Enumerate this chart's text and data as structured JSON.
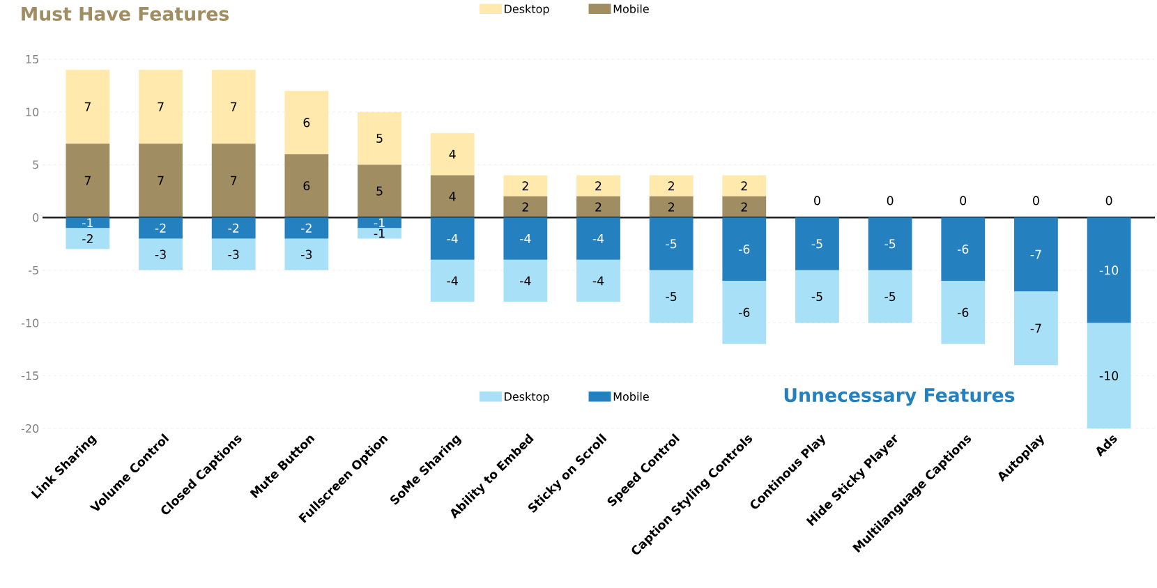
{
  "chart_data": {
    "type": "bar",
    "title": "Must Have Features",
    "stacked": true,
    "data_labels": true,
    "grid": "y",
    "legend": "top",
    "annotations": [
      "Unnecessary Features"
    ],
    "categories": [
      "Link Sharing",
      "Volume Control",
      "Closed Captions",
      "Mute Button",
      "Fullscreen Option",
      "SoMe Sharing",
      "Ability to Embed",
      "Sticky on Scroll",
      "Speed Control",
      "Caption Styling Controls",
      "Continous Play",
      "Hide Sticky Player",
      "Multilanguage Captions",
      "Autoplay",
      "Ads"
    ],
    "series": [
      {
        "name": "Mobile",
        "color": "#a08d62",
        "values": [
          7,
          7,
          7,
          6,
          5,
          4,
          2,
          2,
          2,
          2,
          0,
          0,
          0,
          0,
          0
        ],
        "value_labels": [
          "7",
          "7",
          "7",
          "6",
          "5",
          "4",
          "2",
          "2",
          "2",
          "2",
          null,
          null,
          null,
          null,
          null
        ]
      },
      {
        "name": "Desktop",
        "color": "#ffe9ad",
        "values": [
          7,
          7,
          7,
          6,
          5,
          4,
          2,
          2,
          2,
          2,
          0,
          0,
          0,
          0,
          0
        ]
      },
      {
        "name": "Mobile",
        "color": "#2580bf",
        "values": [
          -1,
          -2,
          -2,
          -2,
          -1,
          -4,
          -4,
          -4,
          -5,
          -6,
          -5,
          -5,
          -6,
          -7,
          -10
        ]
      },
      {
        "name": "Desktop",
        "color": "#a8e0f8",
        "values": [
          -2,
          -3,
          -3,
          -3,
          -1,
          -4,
          -4,
          -4,
          -5,
          -6,
          -5,
          -5,
          -6,
          -7,
          -10
        ]
      }
    ],
    "ylim": [
      -20,
      15
    ],
    "yticks": [
      -20,
      -15,
      -10,
      -5,
      0,
      5,
      10,
      15
    ],
    "ref_lines": [
      {
        "axis": "y",
        "value": 0,
        "color": "#222222"
      }
    ]
  }
}
